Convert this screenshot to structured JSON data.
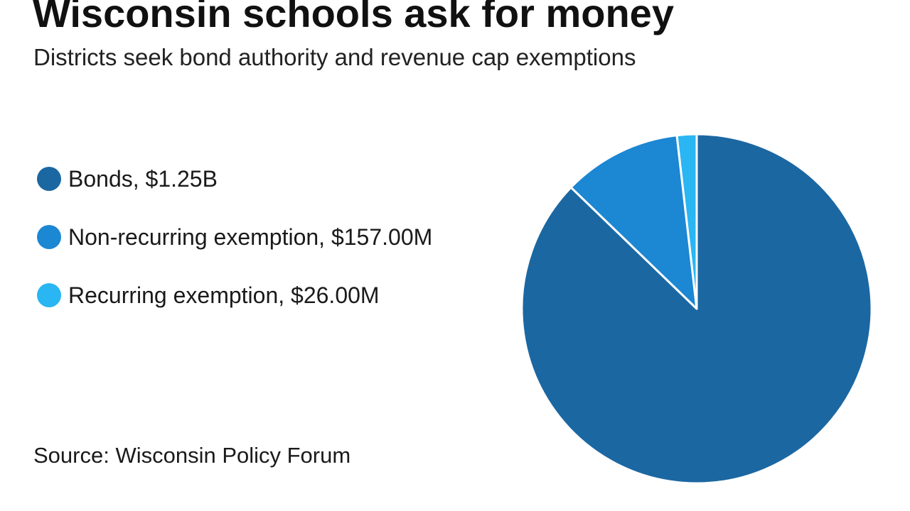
{
  "chart_data": {
    "type": "pie",
    "title": "Wisconsin schools ask for money",
    "subtitle": "Districts seek bond authority and revenue cap exemptions",
    "legend_position": "left",
    "slices": [
      {
        "label": "Bonds, $1.25B",
        "name": "Bonds",
        "value": 1250,
        "value_label": "$1.25B",
        "color": "#1b67a2"
      },
      {
        "label": "Non-recurring exemption, $157.00M",
        "name": "Non-recurring exemption",
        "value": 157,
        "value_label": "$157.00M",
        "color": "#1c87d3"
      },
      {
        "label": "Recurring exemption, $26.00M",
        "name": "Recurring exemption",
        "value": 26,
        "value_label": "$26.00M",
        "color": "#29b6f2"
      }
    ],
    "units": "millions of dollars",
    "source": "Source: Wisconsin Policy Forum"
  }
}
